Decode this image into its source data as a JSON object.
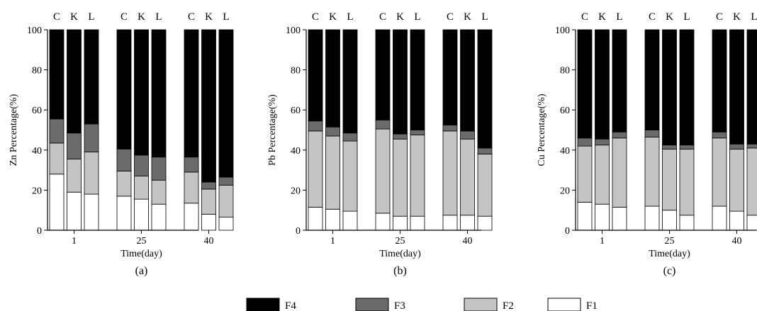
{
  "chart_data": [
    {
      "type": "bar",
      "stacked": true,
      "panel_label": "(a)",
      "ylabel": "Zn Percentage(%)",
      "xlabel": "Time(day)",
      "ylim": [
        0,
        100
      ],
      "yticks": [
        "0",
        "20",
        "40",
        "60",
        "80",
        "100"
      ],
      "time_groups": [
        "1",
        "25",
        "40"
      ],
      "bar_labels": [
        "C",
        "K",
        "L"
      ],
      "bars": [
        {
          "time": "1",
          "treatment": "C",
          "F1": 28,
          "F2": 15.5,
          "F3": 12,
          "F4": 44.5
        },
        {
          "time": "1",
          "treatment": "K",
          "F1": 19,
          "F2": 16.5,
          "F3": 13,
          "F4": 51.5
        },
        {
          "time": "1",
          "treatment": "L",
          "F1": 18,
          "F2": 21,
          "F3": 14,
          "F4": 47
        },
        {
          "time": "25",
          "treatment": "C",
          "F1": 17,
          "F2": 12.5,
          "F3": 11,
          "F4": 59.5
        },
        {
          "time": "25",
          "treatment": "K",
          "F1": 15.5,
          "F2": 11.5,
          "F3": 10.5,
          "F4": 62.5
        },
        {
          "time": "25",
          "treatment": "L",
          "F1": 13,
          "F2": 12,
          "F3": 11.5,
          "F4": 63.5
        },
        {
          "time": "40",
          "treatment": "C",
          "F1": 13.5,
          "F2": 15.5,
          "F3": 7.5,
          "F4": 63.5
        },
        {
          "time": "40",
          "treatment": "K",
          "F1": 8,
          "F2": 12.5,
          "F3": 3.5,
          "F4": 76
        },
        {
          "time": "40",
          "treatment": "L",
          "F1": 6.5,
          "F2": 16,
          "F3": 4,
          "F4": 73.5
        }
      ]
    },
    {
      "type": "bar",
      "stacked": true,
      "panel_label": "(b)",
      "ylabel": "Pb Percentage(%)",
      "xlabel": "Time(day)",
      "ylim": [
        0,
        100
      ],
      "yticks": [
        "0",
        "20",
        "40",
        "60",
        "80",
        "100"
      ],
      "time_groups": [
        "1",
        "25",
        "40"
      ],
      "bar_labels": [
        "C",
        "K",
        "L"
      ],
      "bars": [
        {
          "time": "1",
          "treatment": "C",
          "F1": 11.5,
          "F2": 38,
          "F3": 5,
          "F4": 45.5
        },
        {
          "time": "1",
          "treatment": "K",
          "F1": 10.5,
          "F2": 36.5,
          "F3": 4.5,
          "F4": 48.5
        },
        {
          "time": "1",
          "treatment": "L",
          "F1": 9.5,
          "F2": 35,
          "F3": 4,
          "F4": 51.5
        },
        {
          "time": "25",
          "treatment": "C",
          "F1": 8.5,
          "F2": 42,
          "F3": 4.5,
          "F4": 45
        },
        {
          "time": "25",
          "treatment": "K",
          "F1": 7,
          "F2": 38.5,
          "F3": 2.5,
          "F4": 52
        },
        {
          "time": "25",
          "treatment": "L",
          "F1": 7,
          "F2": 40.5,
          "F3": 2.5,
          "F4": 50
        },
        {
          "time": "40",
          "treatment": "C",
          "F1": 7.5,
          "F2": 42,
          "F3": 3,
          "F4": 47.5
        },
        {
          "time": "40",
          "treatment": "K",
          "F1": 7.5,
          "F2": 38,
          "F3": 4,
          "F4": 50.5
        },
        {
          "time": "40",
          "treatment": "L",
          "F1": 7,
          "F2": 31,
          "F3": 3,
          "F4": 59
        }
      ]
    },
    {
      "type": "bar",
      "stacked": true,
      "panel_label": "(c)",
      "ylabel": "Cu Percentage(%)",
      "xlabel": "Time(day)",
      "ylim": [
        0,
        100
      ],
      "yticks": [
        "0",
        "20",
        "40",
        "60",
        "80",
        "100"
      ],
      "time_groups": [
        "1",
        "25",
        "40"
      ],
      "bar_labels": [
        "C",
        "K",
        "L"
      ],
      "bars": [
        {
          "time": "1",
          "treatment": "C",
          "F1": 14,
          "F2": 28,
          "F3": 4,
          "F4": 54
        },
        {
          "time": "1",
          "treatment": "K",
          "F1": 13,
          "F2": 29.5,
          "F3": 3,
          "F4": 54.5
        },
        {
          "time": "1",
          "treatment": "L",
          "F1": 11.5,
          "F2": 34.5,
          "F3": 3,
          "F4": 51
        },
        {
          "time": "25",
          "treatment": "C",
          "F1": 12,
          "F2": 34.5,
          "F3": 3.5,
          "F4": 50
        },
        {
          "time": "25",
          "treatment": "K",
          "F1": 10,
          "F2": 30.5,
          "F3": 2,
          "F4": 57.5
        },
        {
          "time": "25",
          "treatment": "L",
          "F1": 7.5,
          "F2": 33,
          "F3": 2,
          "F4": 57.5
        },
        {
          "time": "40",
          "treatment": "C",
          "F1": 12,
          "F2": 34,
          "F3": 3,
          "F4": 51
        },
        {
          "time": "40",
          "treatment": "K",
          "F1": 9.5,
          "F2": 31,
          "F3": 2.5,
          "F4": 57
        },
        {
          "time": "40",
          "treatment": "L",
          "F1": 7.5,
          "F2": 33.5,
          "F3": 2,
          "F4": 57
        }
      ]
    }
  ],
  "legend": [
    {
      "key": "F4",
      "label": "F4",
      "color": "#000000"
    },
    {
      "key": "F3",
      "label": "F3",
      "color": "#6b6b6b"
    },
    {
      "key": "F2",
      "label": "F2",
      "color": "#c4c4c4"
    },
    {
      "key": "F1",
      "label": "F1",
      "color": "#ffffff"
    }
  ],
  "stack_order": [
    "F1",
    "F2",
    "F3",
    "F4"
  ]
}
